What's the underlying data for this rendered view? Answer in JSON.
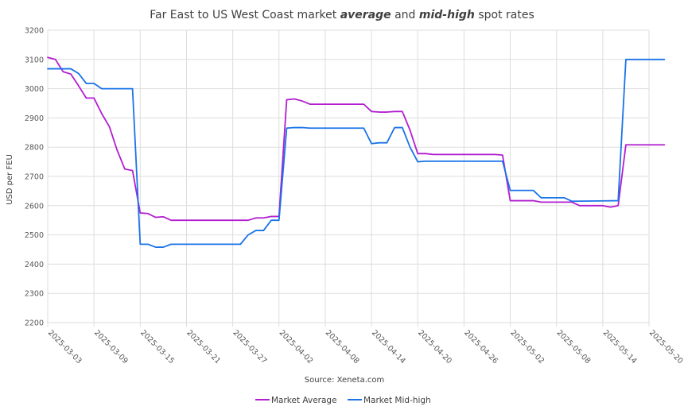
{
  "chart_data": {
    "type": "line",
    "title": {
      "pre": "Far East to US West Coast market ",
      "em1": "average",
      "mid": " and ",
      "em2": "mid-high",
      "post": " spot rates"
    },
    "xlabel": "Source: Xeneta.com",
    "ylabel": "USD per FEU",
    "ylim": [
      2200,
      3200
    ],
    "yticks": [
      2200,
      2300,
      2400,
      2500,
      2600,
      2700,
      2800,
      2900,
      3000,
      3100,
      3200
    ],
    "xlim": [
      "2025-03-03",
      "2025-05-20"
    ],
    "xticks": [
      "2025-03-03",
      "2025-03-09",
      "2025-03-15",
      "2025-03-21",
      "2025-03-27",
      "2025-04-02",
      "2025-04-08",
      "2025-04-14",
      "2025-04-20",
      "2025-04-26",
      "2025-05-02",
      "2025-05-08",
      "2025-05-14",
      "2025-05-20"
    ],
    "grid": true,
    "legend": "bottom",
    "series": [
      {
        "name": "Market Average",
        "color": "#b21ed0",
        "points": [
          [
            "2025-03-03",
            3107
          ],
          [
            "2025-03-04",
            3100
          ],
          [
            "2025-03-05",
            3058
          ],
          [
            "2025-03-06",
            3050
          ],
          [
            "2025-03-07",
            3010
          ],
          [
            "2025-03-08",
            2968
          ],
          [
            "2025-03-09",
            2968
          ],
          [
            "2025-03-10",
            2915
          ],
          [
            "2025-03-11",
            2870
          ],
          [
            "2025-03-12",
            2790
          ],
          [
            "2025-03-13",
            2725
          ],
          [
            "2025-03-14",
            2720
          ],
          [
            "2025-03-15",
            2575
          ],
          [
            "2025-03-16",
            2573
          ],
          [
            "2025-03-17",
            2560
          ],
          [
            "2025-03-18",
            2562
          ],
          [
            "2025-03-19",
            2550
          ],
          [
            "2025-03-29",
            2550
          ],
          [
            "2025-03-30",
            2558
          ],
          [
            "2025-03-31",
            2558
          ],
          [
            "2025-04-01",
            2563
          ],
          [
            "2025-04-02",
            2563
          ],
          [
            "2025-04-03",
            2962
          ],
          [
            "2025-04-04",
            2965
          ],
          [
            "2025-04-05",
            2958
          ],
          [
            "2025-04-06",
            2947
          ],
          [
            "2025-04-13",
            2947
          ],
          [
            "2025-04-14",
            2922
          ],
          [
            "2025-04-15",
            2920
          ],
          [
            "2025-04-16",
            2920
          ],
          [
            "2025-04-17",
            2922
          ],
          [
            "2025-04-18",
            2922
          ],
          [
            "2025-04-19",
            2858
          ],
          [
            "2025-04-20",
            2778
          ],
          [
            "2025-04-21",
            2778
          ],
          [
            "2025-04-22",
            2775
          ],
          [
            "2025-04-29",
            2775
          ],
          [
            "2025-04-30",
            2775
          ],
          [
            "2025-05-01",
            2773
          ],
          [
            "2025-05-02",
            2617
          ],
          [
            "2025-05-05",
            2617
          ],
          [
            "2025-05-06",
            2612
          ],
          [
            "2025-05-10",
            2612
          ],
          [
            "2025-05-11",
            2600
          ],
          [
            "2025-05-14",
            2600
          ],
          [
            "2025-05-15",
            2595
          ],
          [
            "2025-05-16",
            2600
          ],
          [
            "2025-05-17",
            2808
          ],
          [
            "2025-05-22",
            2808
          ]
        ]
      },
      {
        "name": "Market Mid-high",
        "color": "#1a73e8",
        "points": [
          [
            "2025-03-03",
            3068
          ],
          [
            "2025-03-06",
            3068
          ],
          [
            "2025-03-07",
            3052
          ],
          [
            "2025-03-08",
            3018
          ],
          [
            "2025-03-09",
            3018
          ],
          [
            "2025-03-10",
            3000
          ],
          [
            "2025-03-14",
            3000
          ],
          [
            "2025-03-15",
            2468
          ],
          [
            "2025-03-16",
            2468
          ],
          [
            "2025-03-17",
            2458
          ],
          [
            "2025-03-18",
            2458
          ],
          [
            "2025-03-19",
            2468
          ],
          [
            "2025-03-28",
            2468
          ],
          [
            "2025-03-29",
            2500
          ],
          [
            "2025-03-30",
            2515
          ],
          [
            "2025-03-31",
            2515
          ],
          [
            "2025-04-01",
            2550
          ],
          [
            "2025-04-02",
            2550
          ],
          [
            "2025-04-03",
            2865
          ],
          [
            "2025-04-04",
            2867
          ],
          [
            "2025-04-05",
            2867
          ],
          [
            "2025-04-06",
            2865
          ],
          [
            "2025-04-13",
            2865
          ],
          [
            "2025-04-14",
            2812
          ],
          [
            "2025-04-15",
            2815
          ],
          [
            "2025-04-16",
            2815
          ],
          [
            "2025-04-17",
            2867
          ],
          [
            "2025-04-18",
            2867
          ],
          [
            "2025-04-19",
            2800
          ],
          [
            "2025-04-20",
            2750
          ],
          [
            "2025-04-21",
            2752
          ],
          [
            "2025-05-01",
            2752
          ],
          [
            "2025-05-02",
            2652
          ],
          [
            "2025-05-05",
            2652
          ],
          [
            "2025-05-06",
            2627
          ],
          [
            "2025-05-09",
            2627
          ],
          [
            "2025-05-10",
            2615
          ],
          [
            "2025-05-16",
            2617
          ],
          [
            "2025-05-17",
            3100
          ],
          [
            "2025-05-22",
            3100
          ]
        ]
      }
    ]
  }
}
